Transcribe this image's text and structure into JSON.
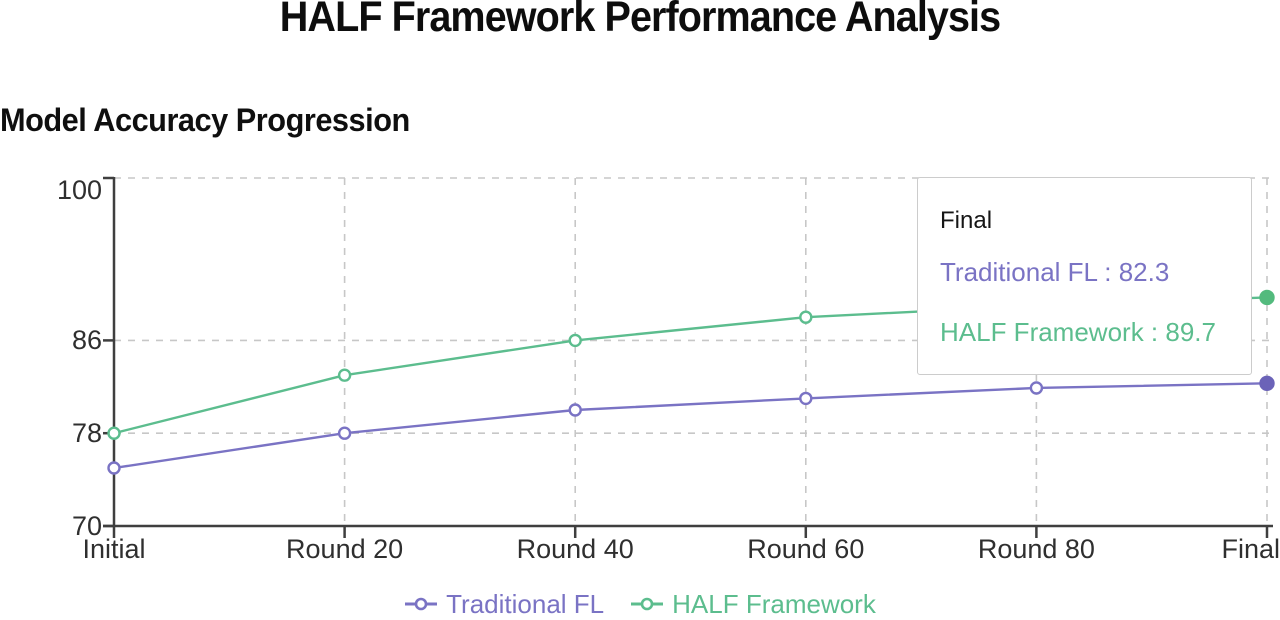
{
  "page": {
    "title": "HALF Framework Performance Analysis"
  },
  "chart": {
    "subtitle": "Model Accuracy Progression"
  },
  "chart_data": {
    "type": "line",
    "title": "Model Accuracy Progression",
    "categories": [
      "Initial",
      "Round 20",
      "Round 40",
      "Round 60",
      "Round 80",
      "Final"
    ],
    "series": [
      {
        "name": "Traditional FL",
        "color": "#7a73c4",
        "point_color": "#6b63b8",
        "values": [
          75,
          78,
          80,
          81,
          81.9,
          82.3
        ]
      },
      {
        "name": "HALF Framework",
        "color": "#5cbd8e",
        "point_color": "#53ba7d",
        "values": [
          78,
          83,
          86,
          88,
          89,
          89.7
        ]
      }
    ],
    "xlabel": "",
    "ylabel": "",
    "ylim": [
      70,
      100
    ],
    "yticks": [
      70,
      78,
      86,
      100
    ],
    "grid": true,
    "legend_position": "bottom",
    "emphasized_point": "Final"
  },
  "tooltip": {
    "title": "Final",
    "separator": " : ",
    "rows": [
      {
        "label": "Traditional FL",
        "value": "82.3",
        "color": "#7a73c4"
      },
      {
        "label": "HALF Framework",
        "value": "89.7",
        "color": "#5cbd8e"
      }
    ]
  },
  "legend": {
    "items": [
      {
        "label": "Traditional FL",
        "color": "#7a73c4"
      },
      {
        "label": "HALF Framework",
        "color": "#5cbd8e"
      }
    ]
  },
  "palette": {
    "axis": "#3f3f3f",
    "grid": "#c7c7c7",
    "axis_text": "#2f2f2f",
    "tooltip_border": "#cccccc",
    "tooltip_bg": "#ffffff",
    "background": "#ffffff"
  }
}
